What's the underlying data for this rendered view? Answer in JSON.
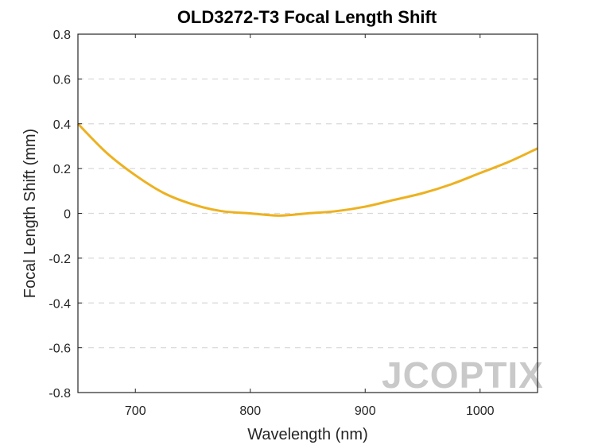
{
  "chart_data": {
    "type": "line",
    "title": "OLD3272-T3 Focal Length Shift",
    "xlabel": "Wavelength (nm)",
    "ylabel": "Focal Length Shift (mm)",
    "xlim": [
      650,
      1050
    ],
    "ylim": [
      -0.8,
      0.8
    ],
    "x_ticks": [
      700,
      800,
      900,
      1000
    ],
    "y_ticks": [
      -0.8,
      -0.6,
      -0.4,
      -0.2,
      0,
      0.2,
      0.4,
      0.6,
      0.8
    ],
    "x_tick_labels": [
      "700",
      "800",
      "900",
      "1000"
    ],
    "y_tick_labels": [
      "-0.8",
      "-0.6",
      "-0.4",
      "-0.2",
      "0",
      "0.2",
      "0.4",
      "0.6",
      "0.8"
    ],
    "grid": "horizontal dashed",
    "series": [
      {
        "color": "#EDB120",
        "x": [
          650,
          675,
          700,
          725,
          750,
          775,
          800,
          825,
          850,
          875,
          900,
          925,
          950,
          975,
          1000,
          1025,
          1050
        ],
        "y": [
          0.4,
          0.27,
          0.17,
          0.09,
          0.04,
          0.01,
          0.0,
          -0.01,
          0.0,
          0.01,
          0.03,
          0.06,
          0.09,
          0.13,
          0.18,
          0.23,
          0.29
        ]
      }
    ]
  },
  "watermark": "JCOPTIX"
}
